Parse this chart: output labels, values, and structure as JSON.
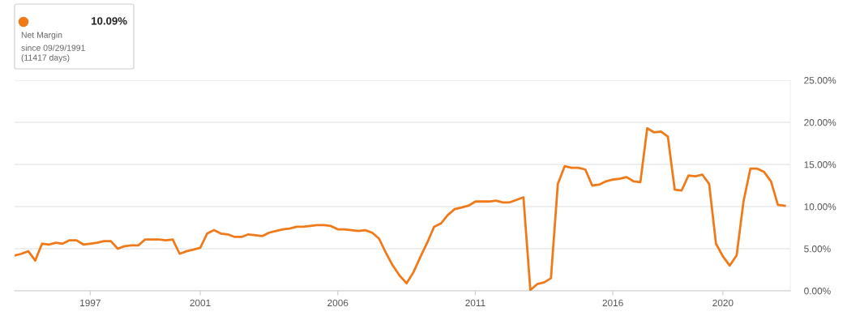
{
  "chart_data": {
    "type": "line",
    "x": [
      1994.25,
      1994.5,
      1994.75,
      1995.0,
      1995.25,
      1995.5,
      1995.75,
      1996.0,
      1996.25,
      1996.5,
      1996.75,
      1997.0,
      1997.25,
      1997.5,
      1997.75,
      1998.0,
      1998.25,
      1998.5,
      1998.75,
      1999.0,
      1999.25,
      1999.5,
      1999.75,
      2000.0,
      2000.25,
      2000.5,
      2000.75,
      2001.0,
      2001.25,
      2001.5,
      2001.75,
      2002.0,
      2002.25,
      2002.5,
      2002.75,
      2003.0,
      2003.25,
      2003.5,
      2003.75,
      2004.0,
      2004.25,
      2004.5,
      2004.75,
      2005.0,
      2005.25,
      2005.5,
      2005.75,
      2006.0,
      2006.25,
      2006.5,
      2006.75,
      2007.0,
      2007.25,
      2007.5,
      2007.75,
      2008.0,
      2008.25,
      2008.5,
      2008.75,
      2009.0,
      2009.25,
      2009.5,
      2009.75,
      2010.0,
      2010.25,
      2010.5,
      2010.75,
      2011.0,
      2011.25,
      2011.5,
      2011.75,
      2012.0,
      2012.25,
      2012.5,
      2012.75,
      2013.0,
      2013.25,
      2013.5,
      2013.75,
      2014.0,
      2014.25,
      2014.5,
      2014.75,
      2015.0,
      2015.25,
      2015.5,
      2015.75,
      2016.0,
      2016.25,
      2016.5,
      2016.75,
      2017.0,
      2017.25,
      2017.5,
      2017.75,
      2018.0,
      2018.25,
      2018.5,
      2018.75,
      2019.0,
      2019.25,
      2019.5,
      2019.75,
      2020.0,
      2020.25,
      2020.5,
      2020.75,
      2021.0,
      2021.25,
      2021.5,
      2021.75,
      2022.0,
      2022.25
    ],
    "series": [
      {
        "color": "#f07a1a",
        "values": [
          4.2,
          4.4,
          4.7,
          3.6,
          5.6,
          5.5,
          5.7,
          5.6,
          6.0,
          6.0,
          5.5,
          5.6,
          5.7,
          5.9,
          5.9,
          5.0,
          5.3,
          5.4,
          5.4,
          6.1,
          6.1,
          6.1,
          6.0,
          6.1,
          4.4,
          4.7,
          4.9,
          5.1,
          6.8,
          7.2,
          6.8,
          6.7,
          6.4,
          6.4,
          6.7,
          6.6,
          6.5,
          6.9,
          7.1,
          7.3,
          7.4,
          7.6,
          7.6,
          7.7,
          7.8,
          7.8,
          7.7,
          7.3,
          7.3,
          7.2,
          7.1,
          7.2,
          6.9,
          6.2,
          4.5,
          3.0,
          1.8,
          0.9,
          2.2,
          4.0,
          5.7,
          7.6,
          8.0,
          9.0,
          9.7,
          9.9,
          10.1,
          10.6,
          10.6,
          10.6,
          10.7,
          10.5,
          10.5,
          10.8,
          11.1,
          0.1,
          0.8,
          1.0,
          1.5,
          12.7,
          14.8,
          14.6,
          14.6,
          14.4,
          12.5,
          12.6,
          13.0,
          13.2,
          13.3,
          13.5,
          13.0,
          12.9,
          19.3,
          18.8,
          18.9,
          18.3,
          12.0,
          11.9,
          13.7,
          13.6,
          13.8,
          12.7,
          5.6,
          4.1,
          3.0,
          4.2,
          10.6,
          14.5,
          14.5,
          14.1,
          13.0,
          10.2,
          10.1
        ]
      }
    ],
    "annotations": [
      "10.09%",
      "Net Margin",
      "since 09/29/1991",
      "(11417 days)"
    ],
    "xlim": [
      1994.25,
      2022.45
    ],
    "xticks": [
      1997,
      2001,
      2006,
      2011,
      2016,
      2020
    ],
    "ylim": [
      0,
      25
    ],
    "yticks": [
      {
        "value": 0,
        "label": "0.00%"
      },
      {
        "value": 5,
        "label": "5.00%"
      },
      {
        "value": 10,
        "label": "10.00%"
      },
      {
        "value": 15,
        "label": "15.00%"
      },
      {
        "value": 20,
        "label": "20.00%"
      },
      {
        "value": 25,
        "label": "25.00%"
      }
    ],
    "grid": "y",
    "marker": "none",
    "line_style": "solid"
  }
}
